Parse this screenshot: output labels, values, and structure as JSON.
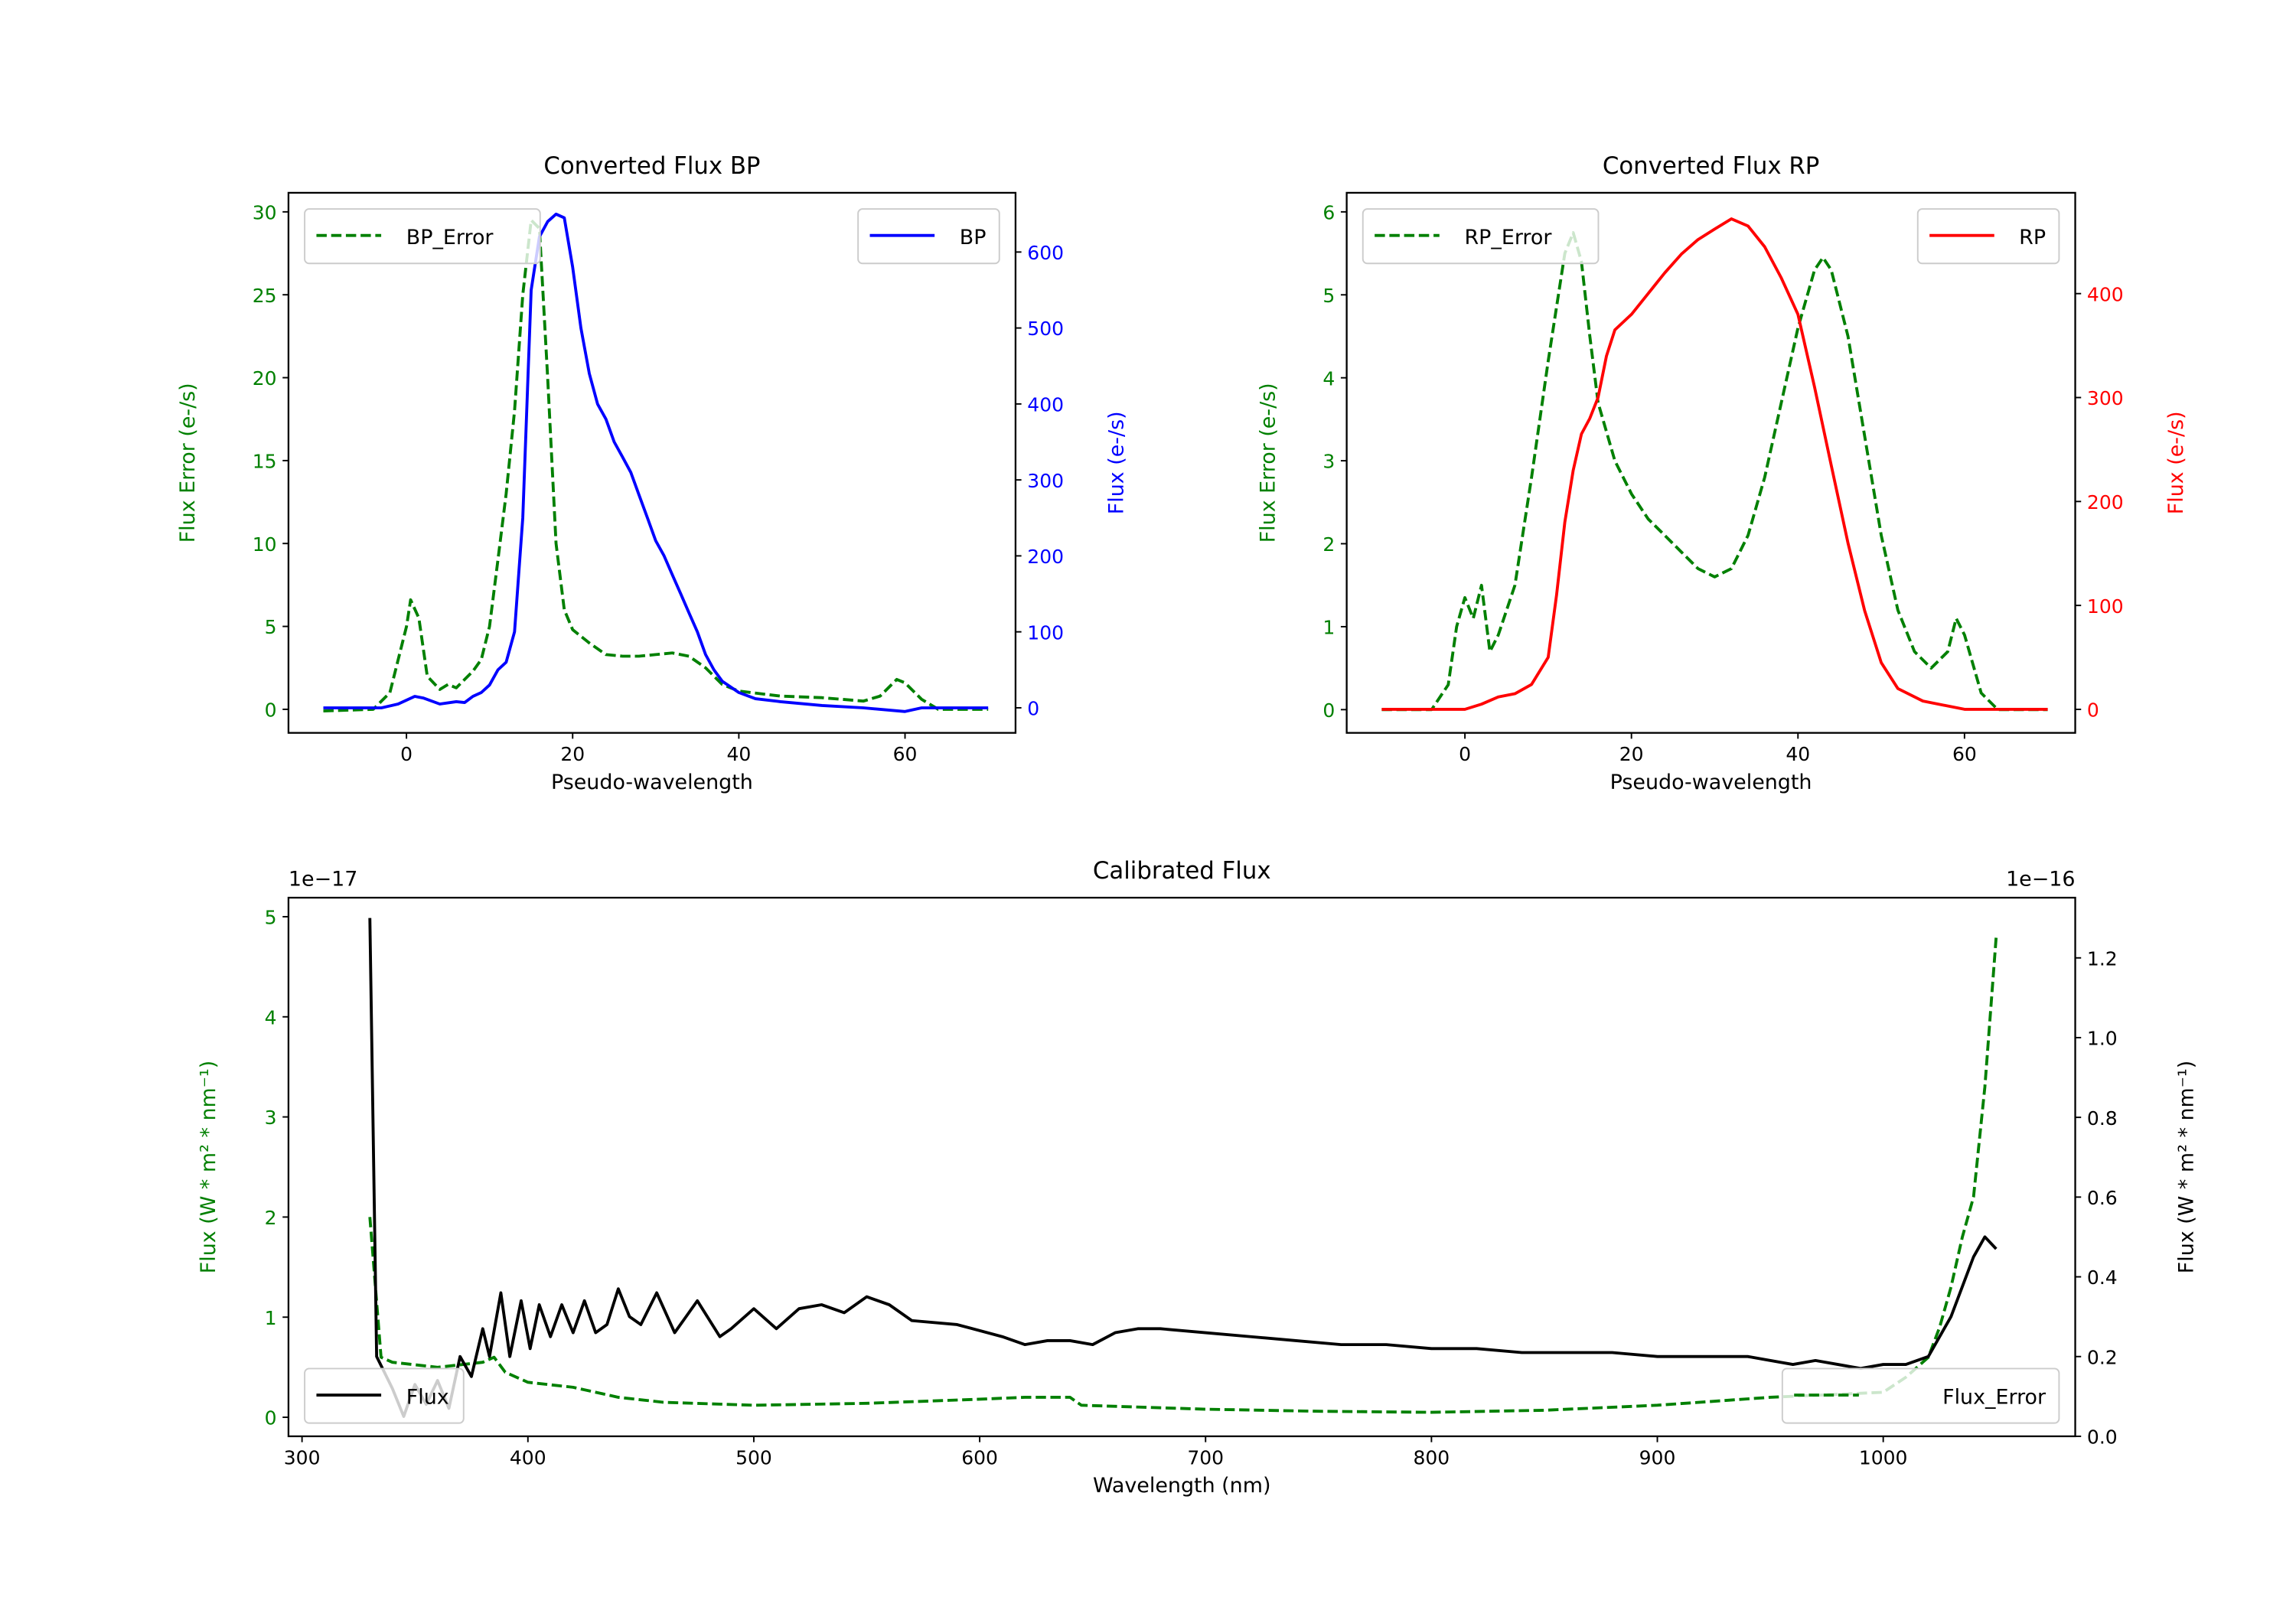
{
  "chart_data": [
    {
      "type": "line",
      "title": "Converted Flux BP",
      "xlabel": "Pseudo-wavelength",
      "ylabel_left": "Flux Error (e-/s)",
      "ylabel_right": "Flux (e-/s)",
      "xlim": [
        -14.2,
        73.3
      ],
      "ylim_left": [
        -1.42,
        31.15
      ],
      "ylim_right": [
        -33,
        678
      ],
      "xticks": [
        0,
        20,
        40,
        60
      ],
      "yticks_left": [
        0,
        5,
        10,
        15,
        20,
        25,
        30
      ],
      "yticks_right": [
        0,
        100,
        200,
        300,
        400,
        500,
        600
      ],
      "left_color": "#008000",
      "right_color": "#0000ff",
      "legend_left": {
        "label": "BP_Error",
        "placement": "upper-left"
      },
      "legend_right": {
        "label": "BP",
        "placement": "upper-right"
      },
      "series": [
        {
          "name": "BP_Error",
          "axis": "left",
          "style": "dashed",
          "color": "#008000",
          "x": [
            -10,
            -4,
            -2,
            0,
            0.5,
            1.5,
            2.5,
            4,
            5,
            6,
            8,
            9,
            10,
            11,
            12,
            13,
            14,
            15,
            16,
            17,
            18,
            19,
            20,
            22,
            24,
            26,
            28,
            30,
            32,
            34,
            36,
            38,
            40,
            45,
            50,
            55,
            57,
            59,
            60,
            62,
            64,
            70
          ],
          "y": [
            -0.1,
            0,
            1,
            5,
            6.6,
            5.5,
            2,
            1.2,
            1.5,
            1.3,
            2.3,
            3,
            5,
            9,
            13,
            18,
            25,
            29.5,
            29,
            20,
            10,
            6,
            4.8,
            4,
            3.3,
            3.2,
            3.2,
            3.3,
            3.4,
            3.2,
            2.5,
            1.5,
            1.1,
            0.8,
            0.7,
            0.5,
            0.8,
            1.8,
            1.6,
            0.6,
            0,
            0
          ]
        },
        {
          "name": "BP",
          "axis": "right",
          "style": "solid",
          "color": "#0000ff",
          "x": [
            -10,
            -3,
            -1,
            1,
            2,
            4,
            6,
            7,
            8,
            9,
            10,
            11,
            12,
            13,
            14,
            15,
            16,
            17,
            18,
            19,
            20,
            21,
            22,
            23,
            24,
            25,
            26,
            27,
            28,
            29,
            30,
            31,
            32,
            33,
            34,
            35,
            36,
            37,
            38,
            40,
            42,
            45,
            50,
            55,
            57,
            60,
            62,
            65,
            70
          ],
          "y": [
            0,
            0,
            5,
            15,
            13,
            5,
            8,
            7,
            15,
            20,
            30,
            50,
            60,
            100,
            250,
            550,
            620,
            640,
            650,
            645,
            580,
            500,
            440,
            400,
            380,
            350,
            330,
            310,
            280,
            250,
            220,
            200,
            175,
            150,
            125,
            100,
            70,
            50,
            35,
            20,
            12,
            8,
            3,
            0,
            -2,
            -5,
            0,
            0,
            0
          ]
        }
      ]
    },
    {
      "type": "line",
      "title": "Converted Flux RP",
      "xlabel": "Pseudo-wavelength",
      "ylabel_left": "Flux Error (e-/s)",
      "ylabel_right": "Flux (e-/s)",
      "xlim": [
        -14.2,
        73.3
      ],
      "ylim_left": [
        -0.28,
        6.23
      ],
      "ylim_right": [
        -22.6,
        497
      ],
      "xticks": [
        0,
        20,
        40,
        60
      ],
      "yticks_left": [
        0,
        1,
        2,
        3,
        4,
        5,
        6
      ],
      "yticks_right": [
        0,
        100,
        200,
        300,
        400
      ],
      "left_color": "#008000",
      "right_color": "#ff0000",
      "legend_left": {
        "label": "RP_Error",
        "placement": "upper-left"
      },
      "legend_right": {
        "label": "RP",
        "placement": "upper-right"
      },
      "series": [
        {
          "name": "RP_Error",
          "axis": "left",
          "style": "dashed",
          "color": "#008000",
          "x": [
            -10,
            -4,
            -2,
            -1,
            0,
            1,
            2,
            3,
            4,
            6,
            8,
            10,
            12,
            13,
            14,
            15,
            16,
            18,
            20,
            22,
            24,
            26,
            28,
            30,
            32,
            34,
            36,
            38,
            40,
            42,
            43,
            44,
            46,
            48,
            50,
            52,
            54,
            56,
            58,
            59,
            60,
            62,
            64,
            70
          ],
          "y": [
            0,
            0,
            0.3,
            1,
            1.35,
            1.1,
            1.5,
            0.7,
            0.9,
            1.5,
            2.8,
            4.2,
            5.5,
            5.75,
            5.4,
            4.5,
            3.7,
            3,
            2.6,
            2.3,
            2.1,
            1.9,
            1.7,
            1.6,
            1.7,
            2.1,
            2.8,
            3.7,
            4.6,
            5.3,
            5.45,
            5.3,
            4.5,
            3.3,
            2.1,
            1.2,
            0.7,
            0.5,
            0.7,
            1.1,
            0.9,
            0.2,
            0,
            0
          ]
        },
        {
          "name": "RP",
          "axis": "right",
          "style": "solid",
          "color": "#ff0000",
          "x": [
            -10,
            0,
            2,
            4,
            6,
            8,
            10,
            11,
            12,
            13,
            14,
            15,
            16,
            17,
            18,
            20,
            22,
            24,
            26,
            28,
            30,
            32,
            34,
            36,
            38,
            40,
            42,
            44,
            46,
            48,
            50,
            52,
            55,
            60,
            70
          ],
          "y": [
            0,
            0,
            5,
            12,
            15,
            24,
            50,
            110,
            180,
            230,
            265,
            280,
            300,
            340,
            365,
            380,
            400,
            420,
            438,
            452,
            462,
            472,
            465,
            445,
            415,
            380,
            310,
            235,
            160,
            95,
            45,
            20,
            8,
            0,
            0
          ]
        }
      ]
    },
    {
      "type": "line",
      "title": "Calibrated Flux",
      "xlabel": "Wavelength (nm)",
      "ylabel_left": "Flux (W * m² * nm⁻¹)",
      "ylabel_right": "Flux (W * m² * nm⁻¹)",
      "offset_left": "1e−17",
      "offset_right": "1e−16",
      "xlim": [
        294,
        1085
      ],
      "ylim_left": [
        -0.19,
        5.19
      ],
      "ylim_right": [
        0,
        1.351
      ],
      "xticks": [
        300,
        400,
        500,
        600,
        700,
        800,
        900,
        1000
      ],
      "yticks_left": [
        0,
        1,
        2,
        3,
        4,
        5
      ],
      "yticks_right": [
        "0.0",
        "0.2",
        "0.4",
        "0.6",
        "0.8",
        "1.0",
        "1.2"
      ],
      "left_color": "#008000",
      "right_color": "#000000",
      "legend_left": {
        "label": "Flux",
        "placement": "lower-left"
      },
      "legend_right": {
        "label": "Flux_Error",
        "placement": "lower-right"
      },
      "series": [
        {
          "name": "Flux_Error",
          "axis": "left",
          "style": "dashed",
          "color": "#008000",
          "x": [
            330,
            335,
            340,
            360,
            380,
            385,
            390,
            400,
            420,
            440,
            460,
            500,
            550,
            600,
            620,
            640,
            645,
            700,
            750,
            800,
            850,
            900,
            950,
            1000,
            1010,
            1020,
            1025,
            1030,
            1035,
            1040,
            1045,
            1050
          ],
          "y": [
            2,
            0.6,
            0.55,
            0.5,
            0.55,
            0.6,
            0.45,
            0.35,
            0.3,
            0.2,
            0.15,
            0.12,
            0.14,
            0.18,
            0.2,
            0.2,
            0.12,
            0.08,
            0.06,
            0.05,
            0.07,
            0.12,
            0.2,
            0.25,
            0.4,
            0.6,
            0.9,
            1.3,
            1.8,
            2.2,
            3.3,
            4.8
          ]
        },
        {
          "name": "Flux",
          "axis": "right",
          "style": "solid",
          "color": "#000000",
          "x": [
            330,
            333,
            340,
            345,
            350,
            355,
            360,
            365,
            370,
            375,
            380,
            383,
            388,
            392,
            397,
            401,
            405,
            410,
            415,
            420,
            425,
            430,
            435,
            440,
            445,
            450,
            457,
            465,
            475,
            485,
            490,
            500,
            510,
            520,
            530,
            540,
            550,
            560,
            570,
            590,
            610,
            620,
            630,
            640,
            650,
            660,
            670,
            680,
            700,
            720,
            740,
            760,
            780,
            800,
            820,
            840,
            860,
            880,
            900,
            920,
            940,
            960,
            970,
            980,
            990,
            1000,
            1010,
            1020,
            1030,
            1040,
            1045,
            1050
          ],
          "y": [
            1.3,
            0.2,
            0.12,
            0.05,
            0.13,
            0.08,
            0.14,
            0.07,
            0.2,
            0.15,
            0.27,
            0.2,
            0.36,
            0.2,
            0.34,
            0.22,
            0.33,
            0.25,
            0.33,
            0.26,
            0.34,
            0.26,
            0.28,
            0.37,
            0.3,
            0.28,
            0.36,
            0.26,
            0.34,
            0.25,
            0.27,
            0.32,
            0.27,
            0.32,
            0.33,
            0.31,
            0.35,
            0.33,
            0.29,
            0.28,
            0.25,
            0.23,
            0.24,
            0.24,
            0.23,
            0.26,
            0.27,
            0.27,
            0.26,
            0.25,
            0.24,
            0.23,
            0.23,
            0.22,
            0.22,
            0.21,
            0.21,
            0.21,
            0.2,
            0.2,
            0.2,
            0.18,
            0.19,
            0.18,
            0.17,
            0.18,
            0.18,
            0.2,
            0.3,
            0.45,
            0.5,
            0.47
          ]
        }
      ]
    }
  ]
}
